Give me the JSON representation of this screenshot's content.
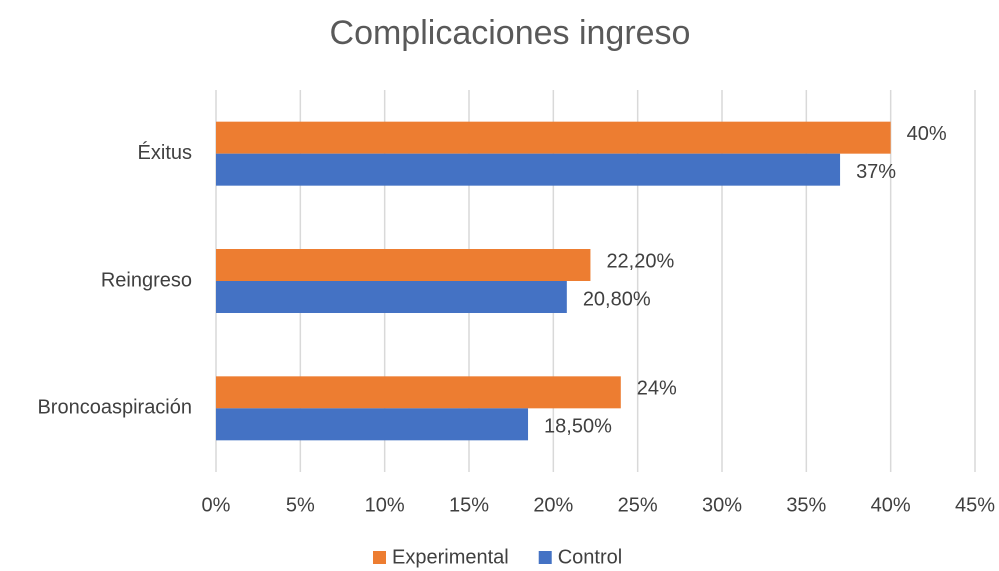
{
  "chart_data": {
    "type": "hbar",
    "title": "Complicaciones ingreso",
    "categories": [
      "Éxitus",
      "Reingreso",
      "Broncoaspiración"
    ],
    "series": [
      {
        "name": "Experimental",
        "color": "#ED7D31",
        "values": [
          40,
          22.2,
          24
        ],
        "value_labels": [
          "40%",
          "22,20%",
          "24%"
        ]
      },
      {
        "name": "Control",
        "color": "#4472C4",
        "values": [
          37,
          20.8,
          18.5
        ],
        "value_labels": [
          "37%",
          "20,80%",
          "18,50%"
        ]
      }
    ],
    "xlim": [
      0,
      45
    ],
    "xticks": [
      {
        "value": 0,
        "label": "0%"
      },
      {
        "value": 5,
        "label": "5%"
      },
      {
        "value": 10,
        "label": "10%"
      },
      {
        "value": 15,
        "label": "15%"
      },
      {
        "value": 20,
        "label": "20%"
      },
      {
        "value": 25,
        "label": "25%"
      },
      {
        "value": 30,
        "label": "30%"
      },
      {
        "value": 35,
        "label": "35%"
      },
      {
        "value": 40,
        "label": "40%"
      },
      {
        "value": 45,
        "label": "45%"
      }
    ],
    "grid": true,
    "legend": "bottom"
  }
}
